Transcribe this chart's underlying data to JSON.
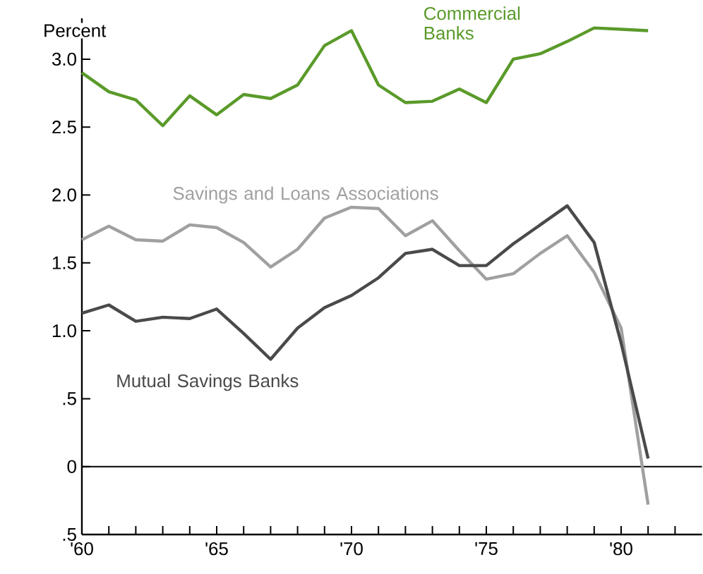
{
  "chart_data": {
    "type": "line",
    "ylabel": "Percent",
    "x": [
      1960,
      1961,
      1962,
      1963,
      1964,
      1965,
      1966,
      1967,
      1968,
      1969,
      1970,
      1971,
      1972,
      1973,
      1974,
      1975,
      1976,
      1977,
      1978,
      1979,
      1980,
      1981
    ],
    "series": [
      {
        "name": "Commercial Banks",
        "color": "#5a9a2a",
        "values": [
          2.9,
          2.76,
          2.7,
          2.51,
          2.73,
          2.59,
          2.74,
          2.71,
          2.81,
          3.1,
          3.21,
          2.81,
          2.68,
          2.69,
          2.78,
          2.68,
          3.0,
          3.04,
          3.13,
          3.23,
          3.22,
          3.21
        ]
      },
      {
        "name": "Savings and Loans Associations",
        "color": "#a0a0a0",
        "values": [
          1.67,
          1.77,
          1.67,
          1.66,
          1.78,
          1.76,
          1.65,
          1.47,
          1.6,
          1.83,
          1.91,
          1.9,
          1.7,
          1.81,
          1.59,
          1.38,
          1.42,
          1.57,
          1.7,
          1.43,
          1.02,
          -0.28
        ]
      },
      {
        "name": "Mutual Savings Banks",
        "color": "#4a4a4a",
        "values": [
          1.13,
          1.19,
          1.07,
          1.1,
          1.09,
          1.16,
          0.98,
          0.79,
          1.02,
          1.17,
          1.26,
          1.39,
          1.57,
          1.6,
          1.48,
          1.48,
          1.64,
          1.78,
          1.92,
          1.65,
          0.91,
          0.06
        ]
      }
    ],
    "xlim": [
      1960,
      1983
    ],
    "xticks": [
      {
        "value": 1960,
        "label": "'60"
      },
      {
        "value": 1961,
        "label": null
      },
      {
        "value": 1962,
        "label": null
      },
      {
        "value": 1963,
        "label": null
      },
      {
        "value": 1964,
        "label": null
      },
      {
        "value": 1965,
        "label": "'65"
      },
      {
        "value": 1966,
        "label": null
      },
      {
        "value": 1967,
        "label": null
      },
      {
        "value": 1968,
        "label": null
      },
      {
        "value": 1969,
        "label": null
      },
      {
        "value": 1970,
        "label": "'70"
      },
      {
        "value": 1971,
        "label": null
      },
      {
        "value": 1972,
        "label": null
      },
      {
        "value": 1973,
        "label": null
      },
      {
        "value": 1974,
        "label": null
      },
      {
        "value": 1975,
        "label": "'75"
      },
      {
        "value": 1976,
        "label": null
      },
      {
        "value": 1977,
        "label": null
      },
      {
        "value": 1978,
        "label": null
      },
      {
        "value": 1979,
        "label": null
      },
      {
        "value": 1980,
        "label": "'80"
      },
      {
        "value": 1981,
        "label": null
      },
      {
        "value": 1982,
        "label": null
      }
    ],
    "ylim": [
      -0.5,
      3.3
    ],
    "yticks": [
      {
        "value": -0.5,
        "label": ".5"
      },
      {
        "value": 0,
        "label": "0"
      },
      {
        "value": 0.5,
        "label": ".5"
      },
      {
        "value": 1.0,
        "label": "1.0"
      },
      {
        "value": 1.5,
        "label": "1.5"
      },
      {
        "value": 2.0,
        "label": "2.0"
      },
      {
        "value": 2.5,
        "label": "2.5"
      },
      {
        "value": 3.0,
        "label": "3.0"
      }
    ],
    "ref_lines": [
      {
        "axis": "y",
        "value": 0,
        "color": "#000000"
      }
    ],
    "marker": "none"
  }
}
